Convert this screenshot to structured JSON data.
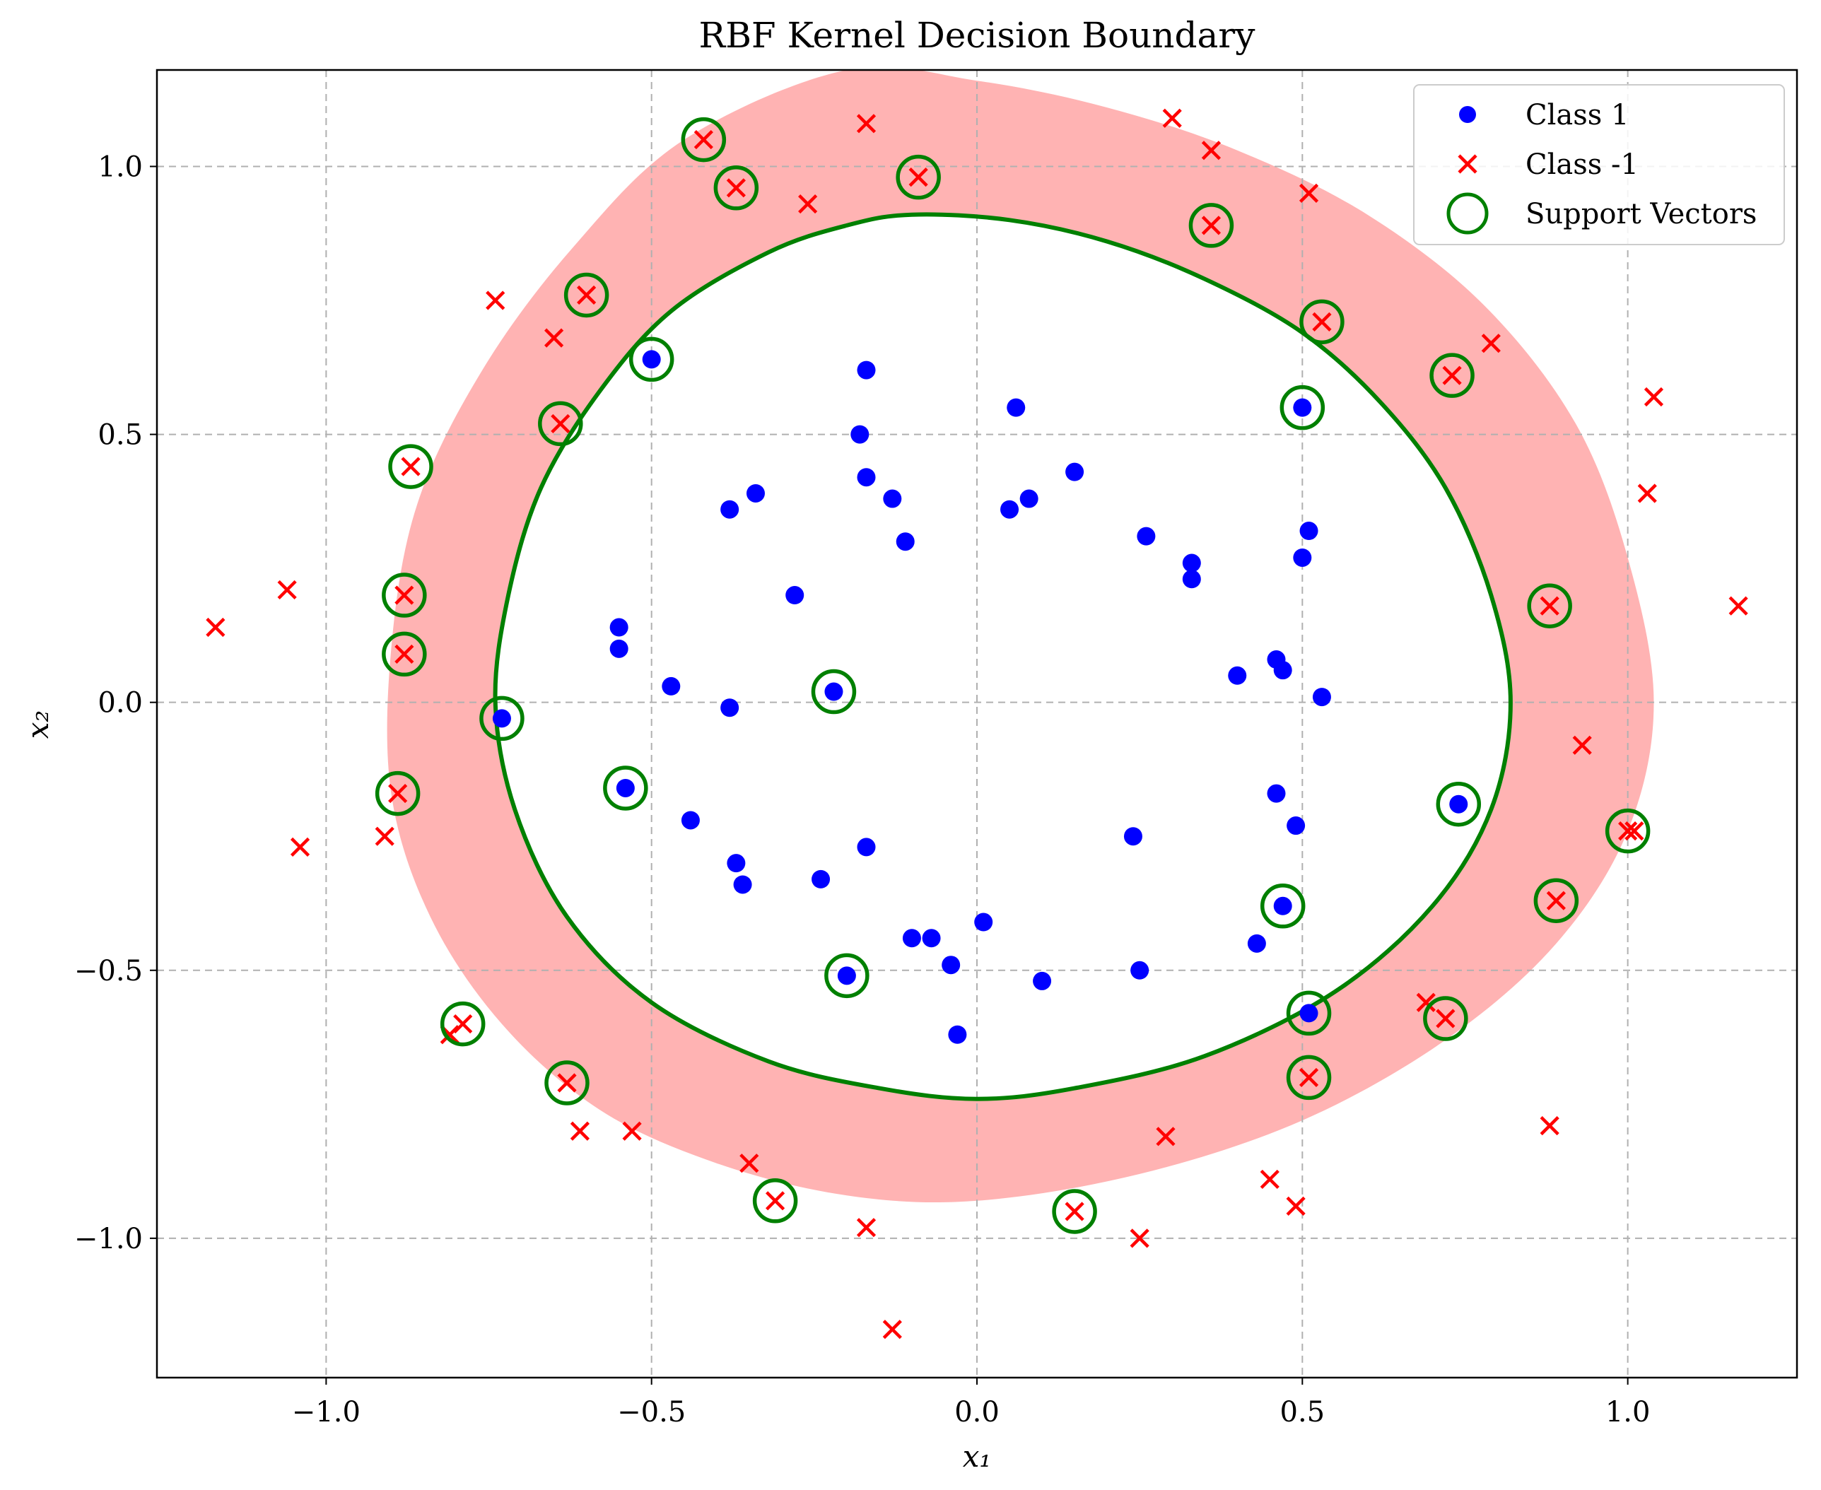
{
  "chart_data": {
    "type": "scatter",
    "title": "RBF Kernel Decision Boundary",
    "xlabel": "x₁",
    "ylabel": "x₂",
    "xlim": [
      -1.26,
      1.26
    ],
    "ylim": [
      -1.26,
      1.18
    ],
    "xticks": [
      {
        "value": -1.0,
        "label": "−1.0"
      },
      {
        "value": -0.5,
        "label": "−0.5"
      },
      {
        "value": 0.0,
        "label": "0.0"
      },
      {
        "value": 0.5,
        "label": "0.5"
      },
      {
        "value": 1.0,
        "label": "1.0"
      }
    ],
    "yticks": [
      {
        "value": -1.0,
        "label": "−1.0"
      },
      {
        "value": -0.5,
        "label": "−0.5"
      },
      {
        "value": 0.0,
        "label": "0.0"
      },
      {
        "value": 0.5,
        "label": "0.5"
      },
      {
        "value": 1.0,
        "label": "1.0"
      }
    ],
    "grid": true,
    "legend_position": "top-right",
    "colors": {
      "class1": "#0000ff",
      "class_neg1": "#ff0000",
      "support_vectors": "#008000",
      "margin_fill": "#ffb3b3",
      "boundary": "#008000"
    },
    "series": [
      {
        "name": "Class 1",
        "marker": "circle",
        "points": [
          [
            -0.5,
            0.64
          ],
          [
            -0.17,
            0.62
          ],
          [
            0.06,
            0.55
          ],
          [
            0.5,
            0.55
          ],
          [
            -0.18,
            0.5
          ],
          [
            0.15,
            0.43
          ],
          [
            -0.17,
            0.42
          ],
          [
            -0.34,
            0.39
          ],
          [
            -0.38,
            0.36
          ],
          [
            -0.13,
            0.38
          ],
          [
            0.08,
            0.38
          ],
          [
            0.05,
            0.36
          ],
          [
            -0.11,
            0.3
          ],
          [
            0.26,
            0.31
          ],
          [
            0.51,
            0.32
          ],
          [
            0.5,
            0.27
          ],
          [
            0.33,
            0.26
          ],
          [
            0.33,
            0.23
          ],
          [
            -0.28,
            0.2
          ],
          [
            -0.55,
            0.14
          ],
          [
            -0.55,
            0.1
          ],
          [
            -0.47,
            0.03
          ],
          [
            -0.22,
            0.02
          ],
          [
            -0.38,
            -0.01
          ],
          [
            0.4,
            0.05
          ],
          [
            0.46,
            0.08
          ],
          [
            0.47,
            0.06
          ],
          [
            0.53,
            0.01
          ],
          [
            -0.73,
            -0.03
          ],
          [
            -0.54,
            -0.16
          ],
          [
            -0.44,
            -0.22
          ],
          [
            0.74,
            -0.19
          ],
          [
            0.46,
            -0.17
          ],
          [
            0.49,
            -0.23
          ],
          [
            0.24,
            -0.25
          ],
          [
            -0.37,
            -0.3
          ],
          [
            -0.17,
            -0.27
          ],
          [
            -0.36,
            -0.34
          ],
          [
            -0.24,
            -0.33
          ],
          [
            0.47,
            -0.38
          ],
          [
            -0.1,
            -0.44
          ],
          [
            -0.07,
            -0.44
          ],
          [
            0.01,
            -0.41
          ],
          [
            0.43,
            -0.45
          ],
          [
            -0.04,
            -0.49
          ],
          [
            0.1,
            -0.52
          ],
          [
            0.25,
            -0.5
          ],
          [
            -0.2,
            -0.51
          ],
          [
            0.51,
            -0.58
          ],
          [
            -0.03,
            -0.62
          ]
        ]
      },
      {
        "name": "Class -1",
        "marker": "x",
        "points": [
          [
            -0.42,
            1.05
          ],
          [
            -0.17,
            1.08
          ],
          [
            0.3,
            1.09
          ],
          [
            0.36,
            1.03
          ],
          [
            -0.37,
            0.96
          ],
          [
            -0.09,
            0.98
          ],
          [
            -0.26,
            0.93
          ],
          [
            0.51,
            0.95
          ],
          [
            0.36,
            0.89
          ],
          [
            -0.6,
            0.76
          ],
          [
            -0.74,
            0.75
          ],
          [
            -0.65,
            0.68
          ],
          [
            0.53,
            0.71
          ],
          [
            0.79,
            0.67
          ],
          [
            0.73,
            0.61
          ],
          [
            -0.64,
            0.52
          ],
          [
            1.04,
            0.57
          ],
          [
            -0.87,
            0.44
          ],
          [
            1.03,
            0.39
          ],
          [
            -1.06,
            0.21
          ],
          [
            -0.88,
            0.2
          ],
          [
            -1.17,
            0.14
          ],
          [
            0.88,
            0.18
          ],
          [
            1.17,
            0.18
          ],
          [
            -0.88,
            0.09
          ],
          [
            0.93,
            -0.08
          ],
          [
            -0.89,
            -0.17
          ],
          [
            -0.91,
            -0.25
          ],
          [
            -1.04,
            -0.27
          ],
          [
            1.0,
            -0.24
          ],
          [
            1.01,
            -0.24
          ],
          [
            0.89,
            -0.37
          ],
          [
            -0.79,
            -0.6
          ],
          [
            -0.81,
            -0.62
          ],
          [
            0.69,
            -0.56
          ],
          [
            0.72,
            -0.59
          ],
          [
            -0.63,
            -0.71
          ],
          [
            0.51,
            -0.7
          ],
          [
            -0.61,
            -0.8
          ],
          [
            -0.53,
            -0.8
          ],
          [
            0.29,
            -0.81
          ],
          [
            0.88,
            -0.79
          ],
          [
            -0.35,
            -0.86
          ],
          [
            0.45,
            -0.89
          ],
          [
            -0.31,
            -0.93
          ],
          [
            0.49,
            -0.94
          ],
          [
            0.15,
            -0.95
          ],
          [
            -0.17,
            -0.98
          ],
          [
            0.25,
            -1.0
          ],
          [
            -0.13,
            -1.17
          ]
        ]
      }
    ],
    "support_vectors": [
      [
        -0.42,
        1.05
      ],
      [
        -0.37,
        0.96
      ],
      [
        -0.09,
        0.98
      ],
      [
        0.36,
        0.89
      ],
      [
        -0.6,
        0.76
      ],
      [
        0.53,
        0.71
      ],
      [
        -0.5,
        0.64
      ],
      [
        0.73,
        0.61
      ],
      [
        -0.64,
        0.52
      ],
      [
        0.5,
        0.55
      ],
      [
        -0.87,
        0.44
      ],
      [
        -0.88,
        0.2
      ],
      [
        0.88,
        0.18
      ],
      [
        -0.88,
        0.09
      ],
      [
        -0.22,
        0.02
      ],
      [
        -0.73,
        -0.03
      ],
      [
        -0.54,
        -0.16
      ],
      [
        -0.89,
        -0.17
      ],
      [
        0.74,
        -0.19
      ],
      [
        1.0,
        -0.24
      ],
      [
        0.89,
        -0.37
      ],
      [
        0.47,
        -0.38
      ],
      [
        -0.2,
        -0.51
      ],
      [
        0.51,
        -0.58
      ],
      [
        -0.79,
        -0.6
      ],
      [
        0.72,
        -0.59
      ],
      [
        -0.63,
        -0.71
      ],
      [
        0.51,
        -0.7
      ],
      [
        -0.31,
        -0.93
      ],
      [
        0.15,
        -0.95
      ]
    ],
    "decision_boundary": [
      [
        -0.1,
        0.91
      ],
      [
        0.05,
        0.9
      ],
      [
        0.2,
        0.86
      ],
      [
        0.35,
        0.79
      ],
      [
        0.5,
        0.69
      ],
      [
        0.62,
        0.56
      ],
      [
        0.72,
        0.4
      ],
      [
        0.79,
        0.2
      ],
      [
        0.82,
        0.0
      ],
      [
        0.79,
        -0.2
      ],
      [
        0.7,
        -0.38
      ],
      [
        0.55,
        -0.54
      ],
      [
        0.35,
        -0.66
      ],
      [
        0.15,
        -0.72
      ],
      [
        0.0,
        -0.74
      ],
      [
        -0.15,
        -0.72
      ],
      [
        -0.32,
        -0.67
      ],
      [
        -0.5,
        -0.56
      ],
      [
        -0.63,
        -0.4
      ],
      [
        -0.71,
        -0.2
      ],
      [
        -0.74,
        0.0
      ],
      [
        -0.72,
        0.2
      ],
      [
        -0.67,
        0.4
      ],
      [
        -0.58,
        0.58
      ],
      [
        -0.47,
        0.73
      ],
      [
        -0.32,
        0.84
      ],
      [
        -0.2,
        0.89
      ]
    ],
    "margin_outer": [
      [
        -0.2,
        1.18
      ],
      [
        0.0,
        1.16
      ],
      [
        0.2,
        1.11
      ],
      [
        0.4,
        1.03
      ],
      [
        0.6,
        0.91
      ],
      [
        0.78,
        0.74
      ],
      [
        0.92,
        0.52
      ],
      [
        1.0,
        0.27
      ],
      [
        1.04,
        0.0
      ],
      [
        1.0,
        -0.24
      ],
      [
        0.89,
        -0.45
      ],
      [
        0.72,
        -0.63
      ],
      [
        0.5,
        -0.78
      ],
      [
        0.25,
        -0.88
      ],
      [
        0.0,
        -0.93
      ],
      [
        -0.2,
        -0.92
      ],
      [
        -0.4,
        -0.86
      ],
      [
        -0.58,
        -0.76
      ],
      [
        -0.73,
        -0.6
      ],
      [
        -0.84,
        -0.4
      ],
      [
        -0.9,
        -0.17
      ],
      [
        -0.9,
        0.1
      ],
      [
        -0.86,
        0.37
      ],
      [
        -0.76,
        0.62
      ],
      [
        -0.62,
        0.85
      ],
      [
        -0.45,
        1.05
      ]
    ],
    "legend": [
      {
        "label": "Class 1",
        "marker": "circle"
      },
      {
        "label": "Class -1",
        "marker": "x"
      },
      {
        "label": "Support Vectors",
        "marker": "ring"
      }
    ]
  }
}
